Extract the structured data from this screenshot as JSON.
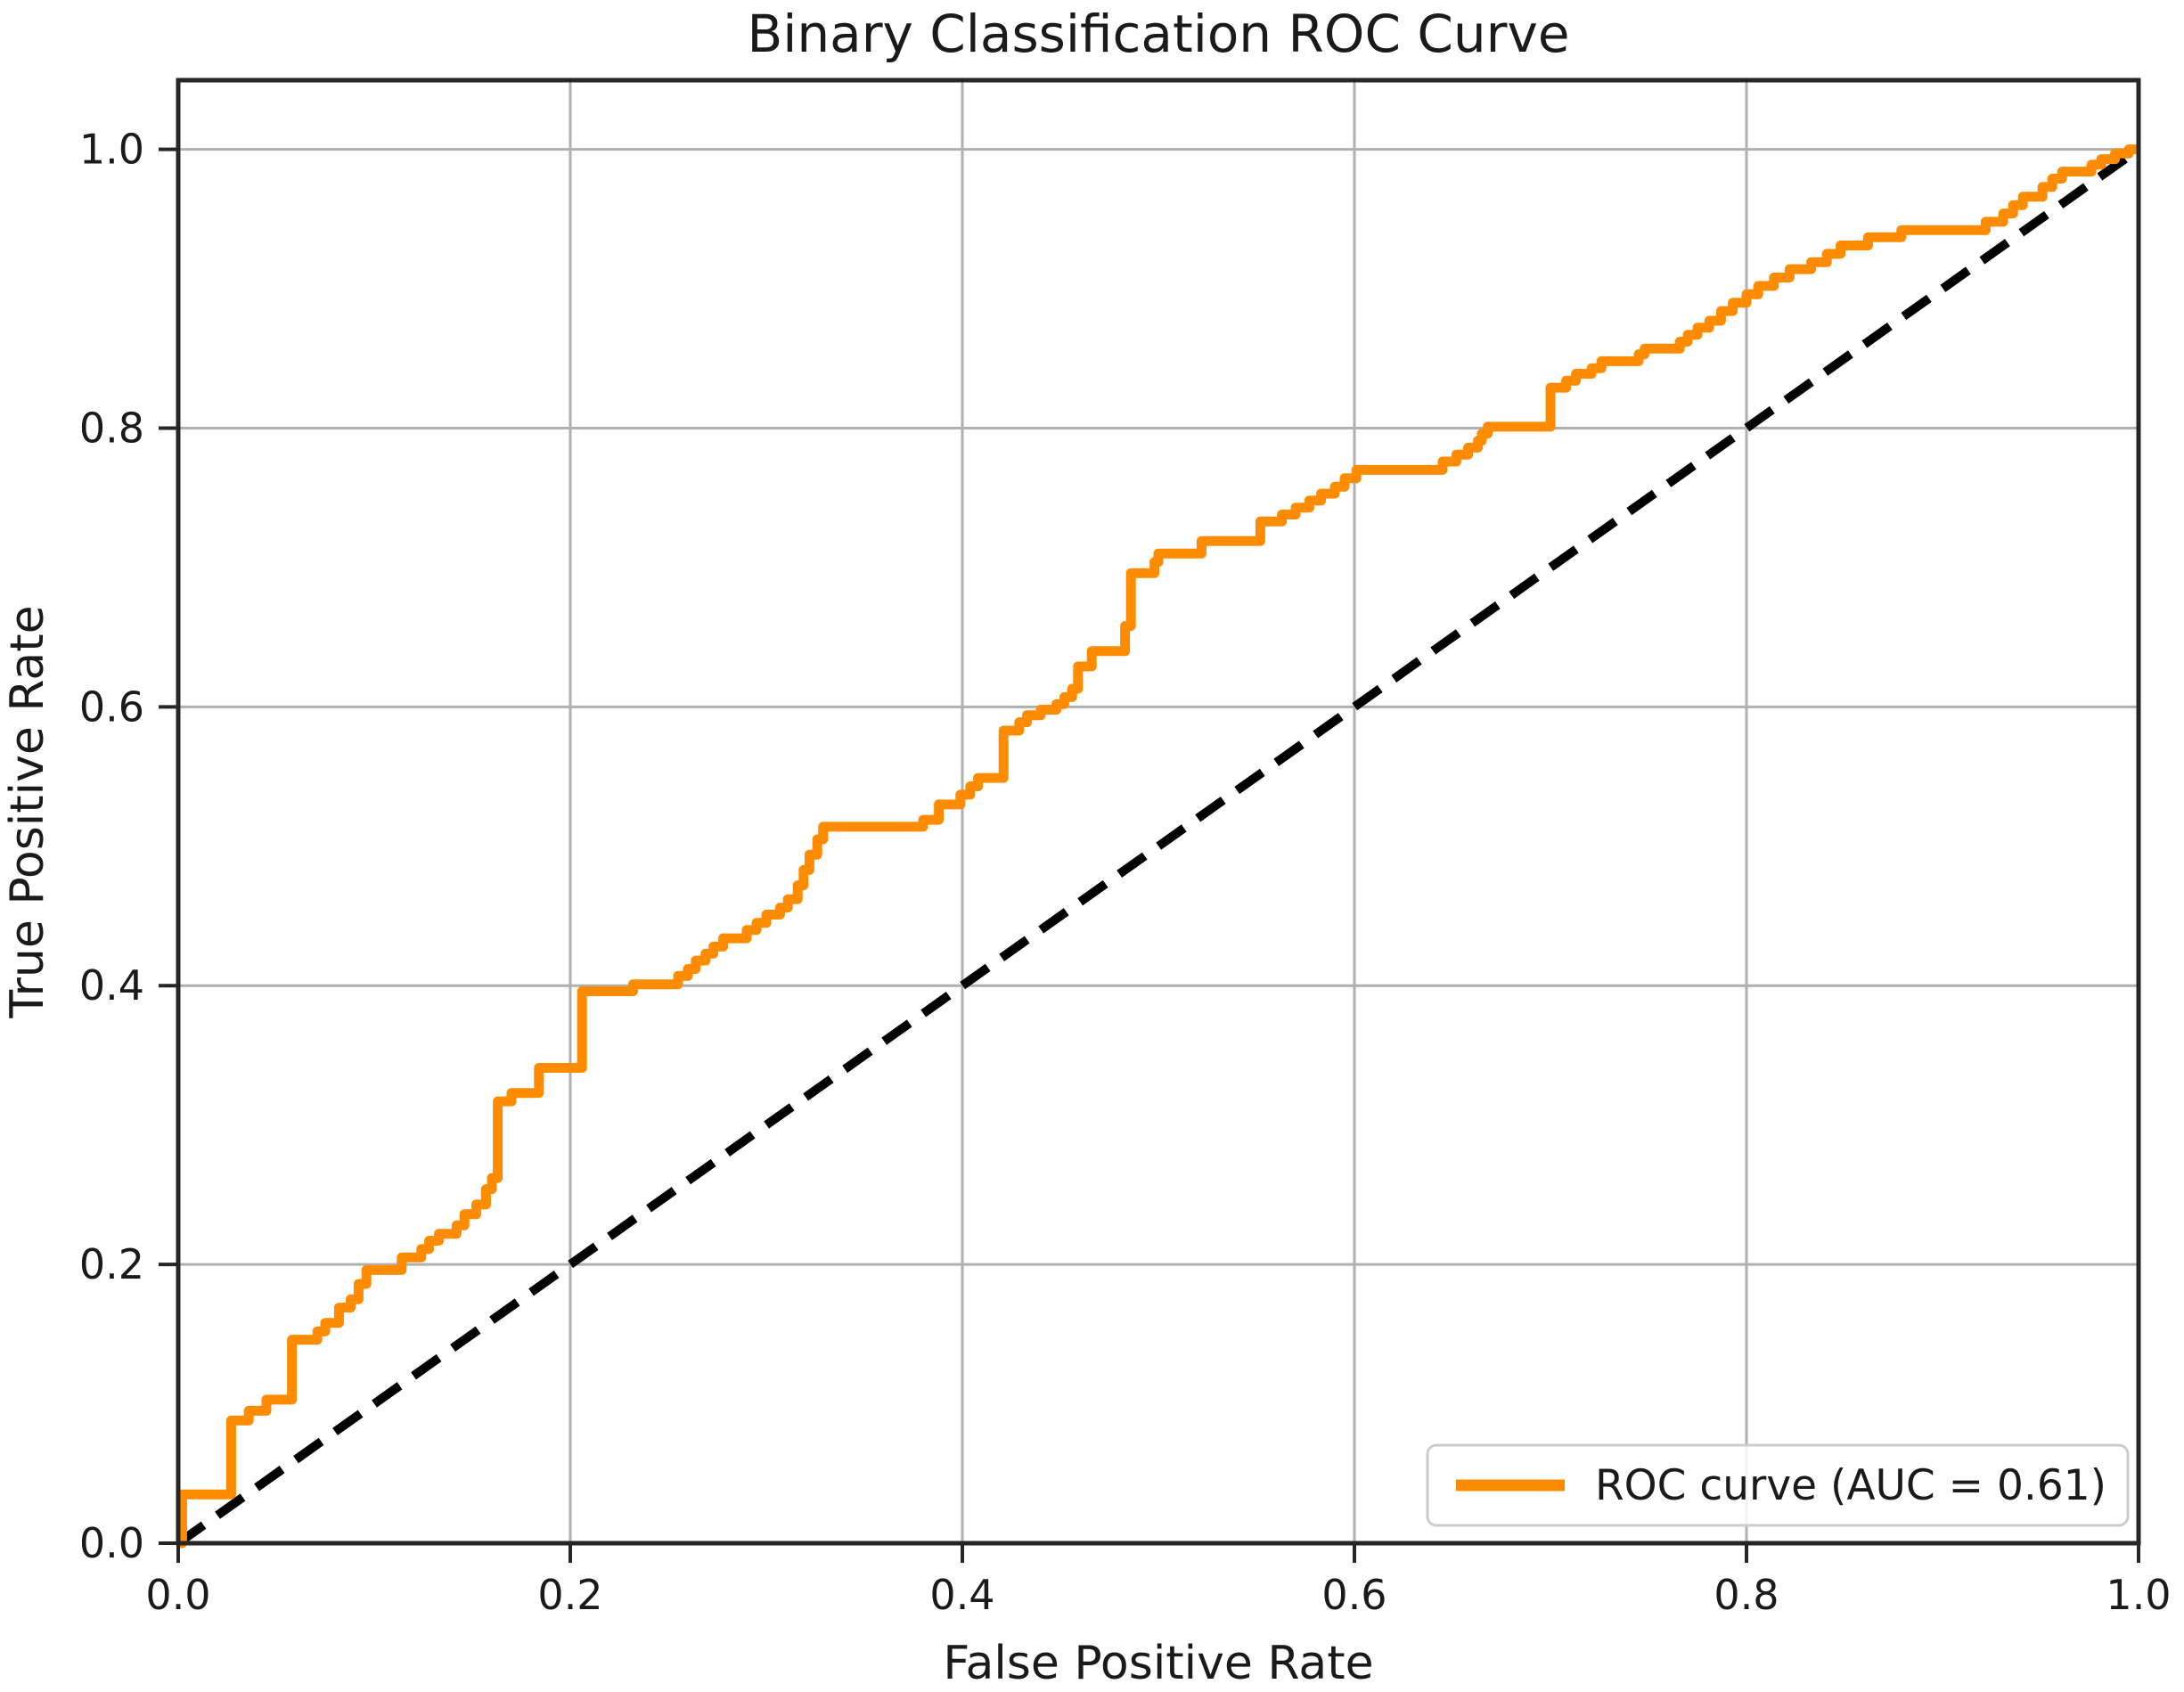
{
  "title": "Binary Classification ROC Curve",
  "axes": {
    "xlabel": "False Positive Rate",
    "ylabel": "True Positive Rate"
  },
  "ticks": {
    "x_values": [
      0.0,
      0.2,
      0.4,
      0.6,
      0.8,
      1.0
    ],
    "x_labels": [
      "0.0",
      "0.2",
      "0.4",
      "0.6",
      "0.8",
      "1.0"
    ],
    "y_values": [
      0.0,
      0.2,
      0.4,
      0.6,
      0.8,
      1.0
    ],
    "y_labels": [
      "0.0",
      "0.2",
      "0.4",
      "0.6",
      "0.8",
      "1.0"
    ]
  },
  "legend": {
    "label": "ROC curve (AUC = 0.61)"
  },
  "colors": {
    "roc": "#ff8c00",
    "diagonal": "#000000",
    "grid": "#b0b0b0",
    "spine": "#262626",
    "text": "#1a1a1a",
    "legend_border": "#cccccc",
    "background": "#ffffff"
  },
  "chart_data": {
    "type": "line",
    "title": "Binary Classification ROC Curve",
    "xlabel": "False Positive Rate",
    "ylabel": "True Positive Rate",
    "xlim": [
      0.0,
      1.0
    ],
    "ylim": [
      0.0,
      1.05
    ],
    "grid": true,
    "legend_position": "lower right",
    "auc": 0.61,
    "series": [
      {
        "name": "ROC curve (AUC = 0.61)",
        "style": "step",
        "color": "#ff8c00",
        "points": [
          [
            0.002,
            0.035
          ],
          [
            0.027,
            0.088
          ],
          [
            0.036,
            0.095
          ],
          [
            0.045,
            0.103
          ],
          [
            0.058,
            0.146
          ],
          [
            0.071,
            0.152
          ],
          [
            0.075,
            0.158
          ],
          [
            0.082,
            0.169
          ],
          [
            0.088,
            0.175
          ],
          [
            0.092,
            0.186
          ],
          [
            0.096,
            0.196
          ],
          [
            0.114,
            0.205
          ],
          [
            0.124,
            0.211
          ],
          [
            0.128,
            0.217
          ],
          [
            0.133,
            0.222
          ],
          [
            0.142,
            0.228
          ],
          [
            0.146,
            0.236
          ],
          [
            0.152,
            0.243
          ],
          [
            0.157,
            0.254
          ],
          [
            0.16,
            0.262
          ],
          [
            0.163,
            0.317
          ],
          [
            0.17,
            0.323
          ],
          [
            0.184,
            0.341
          ],
          [
            0.206,
            0.396
          ],
          [
            0.232,
            0.401
          ],
          [
            0.255,
            0.407
          ],
          [
            0.26,
            0.412
          ],
          [
            0.264,
            0.418
          ],
          [
            0.269,
            0.423
          ],
          [
            0.273,
            0.428
          ],
          [
            0.278,
            0.434
          ],
          [
            0.29,
            0.44
          ],
          [
            0.295,
            0.445
          ],
          [
            0.3,
            0.451
          ],
          [
            0.307,
            0.456
          ],
          [
            0.311,
            0.462
          ],
          [
            0.316,
            0.472
          ],
          [
            0.319,
            0.483
          ],
          [
            0.322,
            0.494
          ],
          [
            0.326,
            0.505
          ],
          [
            0.329,
            0.514
          ],
          [
            0.38,
            0.519
          ],
          [
            0.388,
            0.53
          ],
          [
            0.399,
            0.537
          ],
          [
            0.404,
            0.543
          ],
          [
            0.408,
            0.549
          ],
          [
            0.421,
            0.583
          ],
          [
            0.429,
            0.589
          ],
          [
            0.433,
            0.594
          ],
          [
            0.44,
            0.598
          ],
          [
            0.448,
            0.602
          ],
          [
            0.452,
            0.607
          ],
          [
            0.456,
            0.613
          ],
          [
            0.459,
            0.629
          ],
          [
            0.466,
            0.64
          ],
          [
            0.483,
            0.658
          ],
          [
            0.486,
            0.696
          ],
          [
            0.498,
            0.704
          ],
          [
            0.5,
            0.71
          ],
          [
            0.522,
            0.719
          ],
          [
            0.552,
            0.733
          ],
          [
            0.563,
            0.738
          ],
          [
            0.57,
            0.743
          ],
          [
            0.577,
            0.748
          ],
          [
            0.583,
            0.753
          ],
          [
            0.59,
            0.758
          ],
          [
            0.595,
            0.764
          ],
          [
            0.601,
            0.77
          ],
          [
            0.645,
            0.776
          ],
          [
            0.652,
            0.781
          ],
          [
            0.658,
            0.786
          ],
          [
            0.663,
            0.791
          ],
          [
            0.665,
            0.796
          ],
          [
            0.668,
            0.801
          ],
          [
            0.7,
            0.829
          ],
          [
            0.708,
            0.834
          ],
          [
            0.713,
            0.839
          ],
          [
            0.721,
            0.843
          ],
          [
            0.726,
            0.848
          ],
          [
            0.745,
            0.853
          ],
          [
            0.748,
            0.857
          ],
          [
            0.766,
            0.862
          ],
          [
            0.77,
            0.867
          ],
          [
            0.775,
            0.872
          ],
          [
            0.781,
            0.877
          ],
          [
            0.787,
            0.884
          ],
          [
            0.793,
            0.89
          ],
          [
            0.8,
            0.896
          ],
          [
            0.806,
            0.902
          ],
          [
            0.814,
            0.908
          ],
          [
            0.822,
            0.914
          ],
          [
            0.833,
            0.919
          ],
          [
            0.841,
            0.925
          ],
          [
            0.848,
            0.931
          ],
          [
            0.862,
            0.937
          ],
          [
            0.879,
            0.942
          ],
          [
            0.922,
            0.948
          ],
          [
            0.931,
            0.954
          ],
          [
            0.936,
            0.96
          ],
          [
            0.941,
            0.966
          ],
          [
            0.951,
            0.973
          ],
          [
            0.956,
            0.979
          ],
          [
            0.961,
            0.984
          ],
          [
            0.976,
            0.989
          ],
          [
            0.981,
            0.993
          ],
          [
            0.988,
            0.997
          ],
          [
            0.995,
            1.0
          ],
          [
            1.0,
            1.0
          ]
        ]
      },
      {
        "name": "chance-diagonal",
        "style": "dashed",
        "color": "#000000",
        "points": [
          [
            0.0,
            0.0
          ],
          [
            1.0,
            1.0
          ]
        ]
      }
    ]
  }
}
